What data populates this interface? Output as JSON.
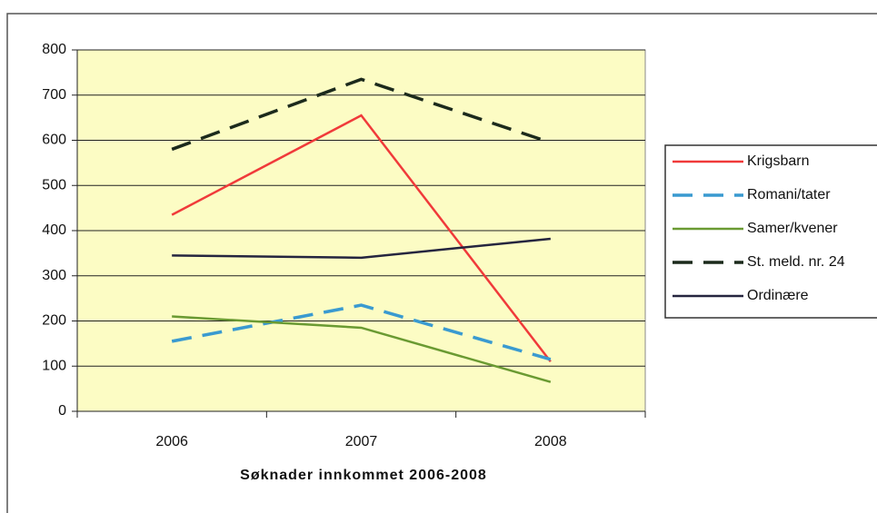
{
  "chart_data": {
    "type": "line",
    "title": "Søknader innkommet 2006-2008",
    "categories": [
      "2006",
      "2007",
      "2008"
    ],
    "series": [
      {
        "name": "Krigsbarn",
        "color": "#f03a3a",
        "dash": false,
        "values": [
          435,
          655,
          110
        ]
      },
      {
        "name": "Romani/tater",
        "color": "#3a9ad0",
        "dash": true,
        "values": [
          155,
          235,
          115
        ]
      },
      {
        "name": "Samer/kvener",
        "color": "#6a9a32",
        "dash": false,
        "values": [
          210,
          185,
          65
        ]
      },
      {
        "name": "St. meld. nr. 24",
        "color": "#1c2a1c",
        "dash": true,
        "values": [
          580,
          735,
          595
        ]
      },
      {
        "name": "Ordinære",
        "color": "#25253f",
        "dash": false,
        "values": [
          345,
          340,
          382
        ]
      }
    ],
    "ylim": [
      0,
      800
    ],
    "yticks": [
      0,
      100,
      200,
      300,
      400,
      500,
      600,
      700,
      800
    ],
    "grid": true,
    "legend": "right"
  }
}
